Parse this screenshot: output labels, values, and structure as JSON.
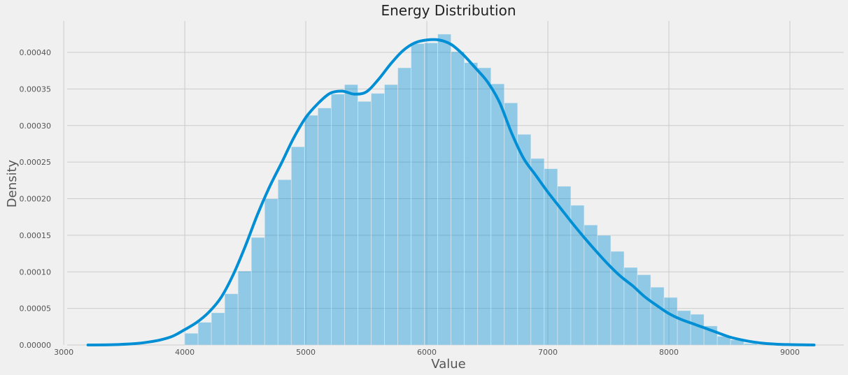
{
  "chart_data": {
    "type": "bar",
    "title": "Energy Distribution",
    "xlabel": "Value",
    "ylabel": "Density",
    "xlim": [
      2930,
      9480
    ],
    "ylim": [
      0,
      0.000443
    ],
    "xticks": [
      3000,
      4000,
      5000,
      6000,
      7000,
      8000,
      9000
    ],
    "xtick_labels": [
      "3000",
      "4000",
      "5000",
      "6000",
      "7000",
      "8000",
      "9000"
    ],
    "yticks": [
      0,
      5e-05,
      0.0001,
      0.00015,
      0.0002,
      0.00025,
      0.0003,
      0.00035,
      0.0004
    ],
    "ytick_labels": [
      "0.00000",
      "0.00005",
      "0.00010",
      "0.00015",
      "0.00020",
      "0.00025",
      "0.00030",
      "0.00035",
      "0.00040"
    ],
    "grid": true,
    "histogram": {
      "bin_start": 4000,
      "bin_width": 110,
      "values": [
        1.6e-05,
        3.1e-05,
        4.4e-05,
        7e-05,
        0.000101,
        0.000147,
        0.0002,
        0.000226,
        0.000271,
        0.000314,
        0.000324,
        0.000343,
        0.000356,
        0.000333,
        0.000344,
        0.000356,
        0.000379,
        0.000412,
        0.000413,
        0.000425,
        0.000401,
        0.000386,
        0.000379,
        0.000357,
        0.000331,
        0.000288,
        0.000255,
        0.000241,
        0.000217,
        0.000191,
        0.000164,
        0.00015,
        0.000128,
        0.000106,
        9.6e-05,
        7.9e-05,
        6.5e-05,
        4.7e-05,
        4.2e-05,
        2.6e-05,
        1.2e-05,
        7e-06,
        2e-06
      ],
      "color": "#008fd5",
      "opacity": 0.4
    },
    "kde": {
      "color": "#008fd5",
      "x": [
        3200,
        3400,
        3600,
        3700,
        3800,
        3900,
        4000,
        4100,
        4200,
        4300,
        4400,
        4500,
        4600,
        4700,
        4800,
        4900,
        5000,
        5100,
        5200,
        5300,
        5400,
        5500,
        5600,
        5700,
        5800,
        5900,
        6000,
        6100,
        6200,
        6300,
        6400,
        6500,
        6600,
        6700,
        6800,
        6900,
        7000,
        7100,
        7200,
        7300,
        7400,
        7500,
        7600,
        7700,
        7800,
        7900,
        8000,
        8100,
        8200,
        8300,
        8400,
        8500,
        8600,
        8700,
        8800,
        8900,
        9000,
        9100,
        9200
      ],
      "y": [
        0,
        3e-07,
        2e-06,
        4e-06,
        7e-06,
        1.2e-05,
        2.1e-05,
        3.1e-05,
        4.5e-05,
        6.5e-05,
        9.6e-05,
        0.000135,
        0.000178,
        0.000216,
        0.000249,
        0.000283,
        0.000311,
        0.00033,
        0.000344,
        0.000347,
        0.000343,
        0.000346,
        0.000363,
        0.000384,
        0.000402,
        0.000413,
        0.000417,
        0.000417,
        0.000411,
        0.000397,
        0.000379,
        0.00036,
        0.000332,
        0.00029,
        0.000255,
        0.000232,
        0.000209,
        0.000188,
        0.000167,
        0.000147,
        0.000128,
        0.00011,
        9.4e-05,
        8.1e-05,
        6.6e-05,
        5.4e-05,
        4.3e-05,
        3.5e-05,
        2.9e-05,
        2.3e-05,
        1.7e-05,
        1.1e-05,
        7e-06,
        4e-06,
        2e-06,
        1e-06,
        5e-07,
        2e-07,
        0
      ]
    }
  }
}
